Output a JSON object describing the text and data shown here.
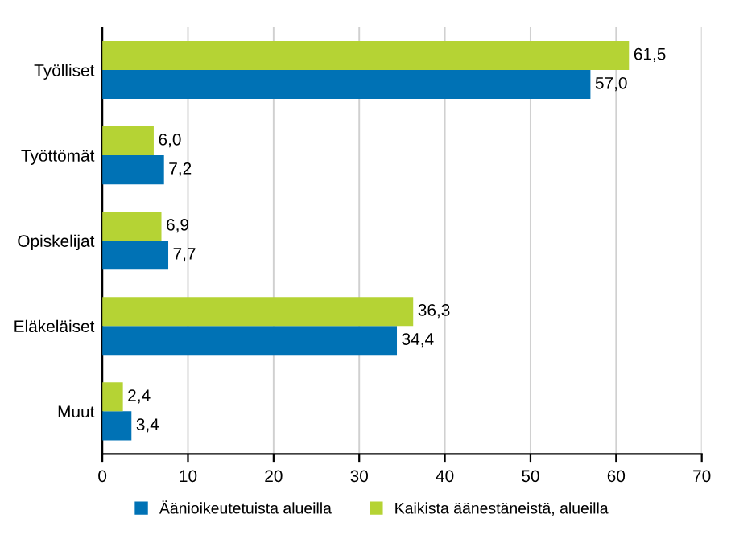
{
  "chart_data": {
    "type": "bar",
    "orientation": "horizontal",
    "categories": [
      "Työlliset",
      "Työttömät",
      "Opiskelijat",
      "Eläkeläiset",
      "Muut"
    ],
    "series": [
      {
        "name": "Äänioikeutetuista alueilla",
        "color": "#0072b5",
        "values": [
          57.0,
          7.2,
          7.7,
          34.4,
          3.4
        ],
        "value_labels": [
          "57,0",
          "7,2",
          "7,7",
          "34,4",
          "3,4"
        ]
      },
      {
        "name": "Kaikista äänestäneistä, alueilla",
        "color": "#b5d334",
        "values": [
          61.5,
          6.0,
          6.9,
          36.3,
          2.4
        ],
        "value_labels": [
          "61,5",
          "6,0",
          "6,9",
          "36,3",
          "2,4"
        ]
      }
    ],
    "xlim": [
      0,
      70
    ],
    "xticks": [
      0,
      10,
      20,
      30,
      40,
      50,
      60,
      70
    ],
    "grid": "x",
    "legend": "bottom"
  }
}
